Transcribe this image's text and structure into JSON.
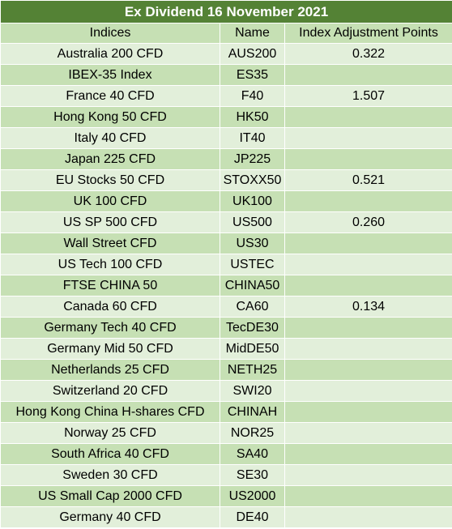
{
  "title": "Ex Dividend 16 November 2021",
  "columns": [
    "Indices",
    "Name",
    "Index Adjustment Points"
  ],
  "rows": [
    {
      "index": "Australia 200 CFD",
      "name": "AUS200",
      "points": "0.322"
    },
    {
      "index": "IBEX-35 Index",
      "name": "ES35",
      "points": ""
    },
    {
      "index": "France 40 CFD",
      "name": "F40",
      "points": "1.507"
    },
    {
      "index": "Hong Kong 50 CFD",
      "name": "HK50",
      "points": ""
    },
    {
      "index": "Italy 40 CFD",
      "name": "IT40",
      "points": ""
    },
    {
      "index": "Japan 225 CFD",
      "name": "JP225",
      "points": ""
    },
    {
      "index": "EU Stocks 50 CFD",
      "name": "STOXX50",
      "points": "0.521"
    },
    {
      "index": "UK 100 CFD",
      "name": "UK100",
      "points": ""
    },
    {
      "index": "US SP 500 CFD",
      "name": "US500",
      "points": "0.260"
    },
    {
      "index": "Wall Street CFD",
      "name": "US30",
      "points": ""
    },
    {
      "index": "US Tech 100 CFD",
      "name": "USTEC",
      "points": ""
    },
    {
      "index": "FTSE CHINA 50",
      "name": "CHINA50",
      "points": ""
    },
    {
      "index": "Canada 60 CFD",
      "name": "CA60",
      "points": "0.134"
    },
    {
      "index": "Germany Tech 40 CFD",
      "name": "TecDE30",
      "points": ""
    },
    {
      "index": "Germany Mid 50 CFD",
      "name": "MidDE50",
      "points": ""
    },
    {
      "index": "Netherlands 25 CFD",
      "name": "NETH25",
      "points": ""
    },
    {
      "index": "Switzerland 20 CFD",
      "name": "SWI20",
      "points": ""
    },
    {
      "index": "Hong Kong China H-shares CFD",
      "name": "CHINAH",
      "points": ""
    },
    {
      "index": "Norway 25 CFD",
      "name": "NOR25",
      "points": ""
    },
    {
      "index": "South Africa 40 CFD",
      "name": "SA40",
      "points": ""
    },
    {
      "index": "Sweden 30 CFD",
      "name": "SE30",
      "points": ""
    },
    {
      "index": "US Small Cap 2000 CFD",
      "name": "US2000",
      "points": ""
    },
    {
      "index": "Germany 40 CFD",
      "name": "DE40",
      "points": ""
    }
  ]
}
